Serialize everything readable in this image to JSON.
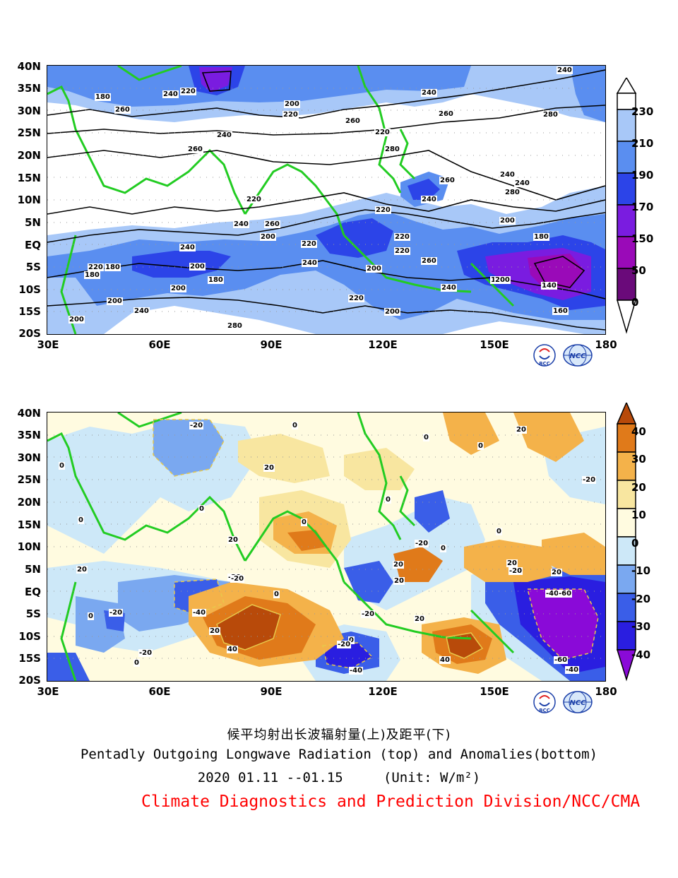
{
  "top_panel": {
    "lat_labels": [
      "40N",
      "35N",
      "30N",
      "25N",
      "20N",
      "15N",
      "10N",
      "5N",
      "EQ",
      "5S",
      "10S",
      "15S",
      "20S"
    ],
    "lon_labels": [
      "30E",
      "60E",
      "90E",
      "120E",
      "150E",
      "180"
    ],
    "colorbar_labels": [
      "230",
      "210",
      "190",
      "170",
      "150",
      "50",
      "0"
    ],
    "colorbar_colors": [
      "#a8c8f8",
      "#5a8ef0",
      "#2c44e8",
      "#7a1ce0",
      "#9a0ab8",
      "#6a0a7a",
      "#3a0a4a"
    ],
    "contour_labels": [
      "240",
      "180",
      "220",
      "200",
      "240",
      "260",
      "240",
      "220",
      "240",
      "260",
      "280",
      "260",
      "220",
      "260",
      "280",
      "240",
      "260",
      "240",
      "280",
      "220",
      "240",
      "220",
      "200",
      "260",
      "240",
      "200",
      "220",
      "240",
      "220",
      "260",
      "220",
      "180",
      "200",
      "240",
      "220",
      "180",
      "200",
      "180",
      "180",
      "160",
      "240",
      "200",
      "200",
      "140",
      "200",
      "220",
      "200",
      "240",
      "280",
      "160",
      "200"
    ]
  },
  "bottom_panel": {
    "lat_labels": [
      "40N",
      "35N",
      "30N",
      "25N",
      "20N",
      "15N",
      "10N",
      "5N",
      "EQ",
      "5S",
      "10S",
      "15S",
      "20S"
    ],
    "lon_labels": [
      "30E",
      "60E",
      "90E",
      "120E",
      "150E",
      "180"
    ],
    "colorbar_labels": [
      "40",
      "30",
      "20",
      "10",
      "0",
      "-10",
      "-20",
      "-30",
      "-40"
    ],
    "colorbar_colors": [
      "#b84a0a",
      "#e07a1a",
      "#f4b24a",
      "#f8e6a0",
      "#fffbe0",
      "#cde8f8",
      "#7aa8f0",
      "#3a5ee8",
      "#2a1ee0",
      "#8a0ad8"
    ],
    "contour_labels": [
      "-20",
      "0",
      "20",
      "0",
      "0",
      "0",
      "-20",
      "20",
      "0",
      "0",
      "0",
      "0",
      "20",
      "-20",
      "0",
      "20",
      "-20",
      "20",
      "0",
      "20",
      "-20",
      "20",
      "-40",
      "-60",
      "-20",
      "0",
      "-20",
      "-40",
      "20",
      "40",
      "-20",
      "0",
      "20",
      "40",
      "-60",
      "-40",
      "-20",
      "0",
      "-40",
      "20",
      "0",
      "-20"
    ]
  },
  "logos": [
    {
      "name": "bcc-logo",
      "text": "BCC"
    },
    {
      "name": "ncc-logo",
      "text": "NCC"
    }
  ],
  "captions": {
    "title_zh": "候平均射出长波辐射量(上)及距平(下)",
    "title_en": "Pentadly Outgoing Longwave Radiation (top) and Anomalies(bottom)",
    "date_range": "2020  01.11 --01.15",
    "unit": "(Unit: W/m²)",
    "organization": "Climate Diagnostics and Prediction Division/NCC/CMA"
  },
  "colors": {
    "coastline": "#22cc22",
    "contour": "#000000",
    "org_text": "#ff0000"
  }
}
